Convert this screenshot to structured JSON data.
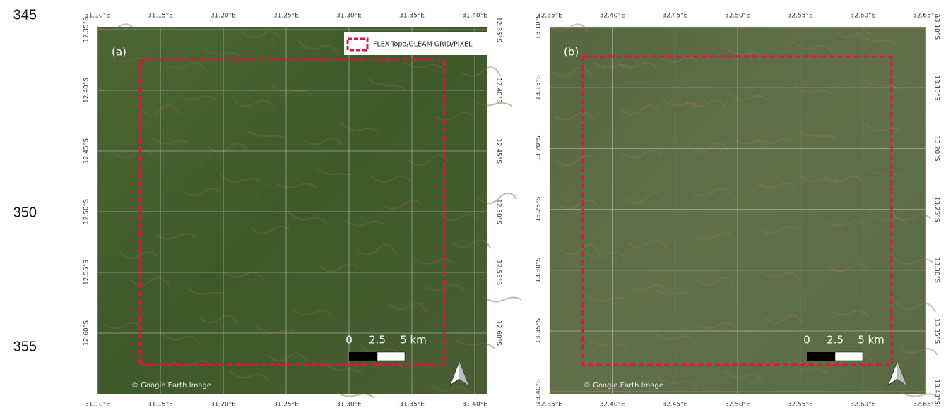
{
  "line_numbers": [
    "345",
    "350",
    "355"
  ],
  "panels": [
    {
      "label": "(a)",
      "x_ticks": [
        "31.10°E",
        "31.15°E",
        "31.20°E",
        "31.25°E",
        "31.30°E",
        "31.35°E",
        "31.40°E"
      ],
      "y_ticks": [
        "12.35°S",
        "12.40°S",
        "12.45°S",
        "12.50°S",
        "12.55°S",
        "12.60°S"
      ],
      "legend": "FLEX-Topo/GLEAM GRID/PIXEL",
      "scale_labels": [
        "0",
        "2.5",
        "5 km"
      ],
      "credit": "© Google Earth Image"
    },
    {
      "label": "(b)",
      "x_ticks": [
        "32.35°E",
        "32.40°E",
        "32.45°E",
        "32.50°E",
        "32.55°E",
        "32.60°E",
        "32.65°E"
      ],
      "y_ticks": [
        "13.10°S",
        "13.15°S",
        "13.20°S",
        "13.25°S",
        "13.30°S",
        "13.35°S",
        "13.40°S"
      ],
      "scale_labels": [
        "0",
        "2.5",
        "5 km"
      ],
      "credit": "© Google Earth Image"
    }
  ]
}
